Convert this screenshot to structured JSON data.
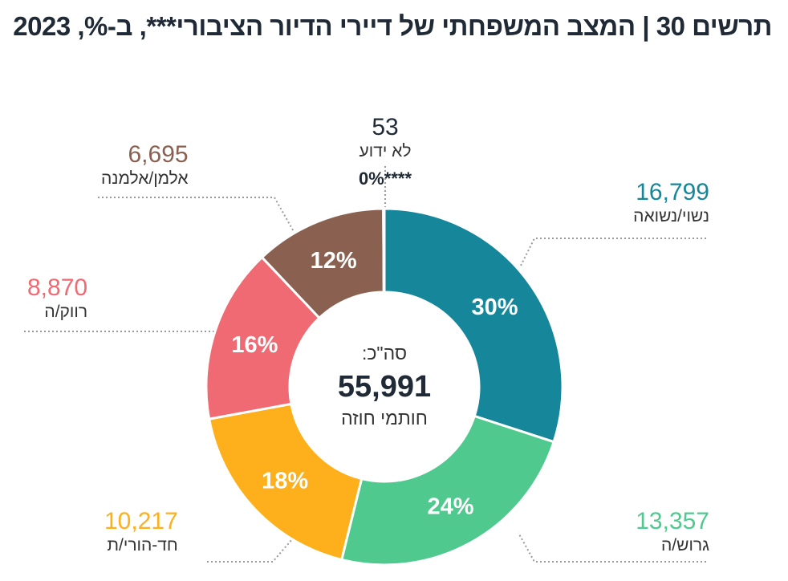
{
  "title": "תרשים 30 | המצב המשפחתי של דיירי הדיור הציבורי***, ב-%, 2023",
  "center": {
    "top": "סה\"כ:",
    "total": "55,991",
    "bottom": "חותמי חוזה"
  },
  "chart_data": {
    "type": "pie",
    "title": "תרשים 30 | המצב המשפחתי של דיירי הדיור הציבורי***, ב-%, 2023",
    "total": 55991,
    "total_label": "חותמי חוזה",
    "slices": [
      {
        "label": "נשוי/נשואה",
        "value": 16799,
        "percent": "30%",
        "color": "#16879a"
      },
      {
        "label": "גרוש/ה",
        "value": 13357,
        "percent": "24%",
        "color": "#50c98f"
      },
      {
        "label": "חד-הורי/ת",
        "value": 10217,
        "percent": "18%",
        "color": "#fdb01b"
      },
      {
        "label": "רווק/ה",
        "value": 8870,
        "percent": "16%",
        "color": "#ef6a72"
      },
      {
        "label": "אלמן/אלמנה",
        "value": 6695,
        "percent": "12%",
        "color": "#8a6050"
      },
      {
        "label": "לא ידוע",
        "value": 53,
        "percent": "0%****",
        "color": "#8a8a8a"
      }
    ],
    "value_labels": [
      "16,799",
      "13,357",
      "10,217",
      "8,870",
      "6,695",
      "53"
    ]
  }
}
